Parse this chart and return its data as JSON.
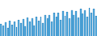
{
  "values": [
    55,
    52,
    58,
    46,
    62,
    54,
    60,
    48,
    64,
    56,
    65,
    50,
    68,
    60,
    66,
    52,
    70,
    62,
    70,
    56,
    74,
    66,
    74,
    60,
    78,
    70,
    78,
    64,
    82,
    72,
    80,
    66,
    84,
    74,
    82,
    68,
    86,
    76,
    84,
    70,
    88,
    78,
    86,
    72
  ],
  "bar_color": "#5aabde",
  "edge_color": "#1878b4",
  "background_color": "#ffffff",
  "ylim_min": 30,
  "ylim_max": 105,
  "bar_width": 0.7
}
